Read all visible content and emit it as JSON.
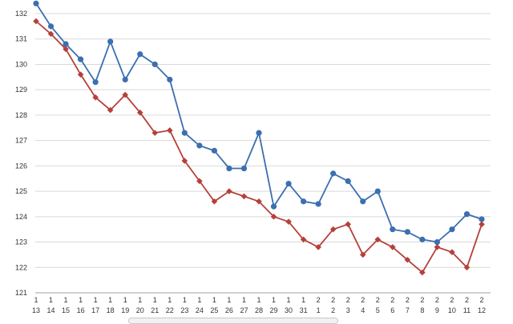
{
  "chart_data": {
    "type": "line",
    "ylim": [
      121,
      132
    ],
    "yticks": [
      121,
      122,
      123,
      124,
      125,
      126,
      127,
      128,
      129,
      130,
      131,
      132
    ],
    "grid": true,
    "legend": "none",
    "x_labels": [
      {
        "top": "1",
        "bottom": "13"
      },
      {
        "top": "1",
        "bottom": "14"
      },
      {
        "top": "1",
        "bottom": "15"
      },
      {
        "top": "1",
        "bottom": "16"
      },
      {
        "top": "1",
        "bottom": "17"
      },
      {
        "top": "1",
        "bottom": "18"
      },
      {
        "top": "1",
        "bottom": "19"
      },
      {
        "top": "1",
        "bottom": "20"
      },
      {
        "top": "1",
        "bottom": "21"
      },
      {
        "top": "1",
        "bottom": "22"
      },
      {
        "top": "1",
        "bottom": "23"
      },
      {
        "top": "1",
        "bottom": "24"
      },
      {
        "top": "1",
        "bottom": "25"
      },
      {
        "top": "1",
        "bottom": "26"
      },
      {
        "top": "1",
        "bottom": "27"
      },
      {
        "top": "1",
        "bottom": "28"
      },
      {
        "top": "1",
        "bottom": "29"
      },
      {
        "top": "1",
        "bottom": "30"
      },
      {
        "top": "1",
        "bottom": "31"
      },
      {
        "top": "2",
        "bottom": "1"
      },
      {
        "top": "2",
        "bottom": "2"
      },
      {
        "top": "2",
        "bottom": "3"
      },
      {
        "top": "2",
        "bottom": "4"
      },
      {
        "top": "2",
        "bottom": "5"
      },
      {
        "top": "2",
        "bottom": "6"
      },
      {
        "top": "2",
        "bottom": "7"
      },
      {
        "top": "2",
        "bottom": "8"
      },
      {
        "top": "2",
        "bottom": "9"
      },
      {
        "top": "2",
        "bottom": "10"
      },
      {
        "top": "2",
        "bottom": "11"
      },
      {
        "top": "2",
        "bottom": "12"
      }
    ],
    "series": [
      {
        "color": "#3b6fb0",
        "marker": "circle",
        "values": [
          132.4,
          131.5,
          130.8,
          130.2,
          129.3,
          130.9,
          129.4,
          130.4,
          130.0,
          129.4,
          127.3,
          126.8,
          126.6,
          125.9,
          125.9,
          127.3,
          124.4,
          125.3,
          124.6,
          124.5,
          125.7,
          125.4,
          124.6,
          125.0,
          123.5,
          123.4,
          123.1,
          123.0,
          123.5,
          124.1,
          123.9
        ]
      },
      {
        "color": "#b5403a",
        "marker": "diamond",
        "values": [
          131.7,
          131.2,
          130.6,
          129.6,
          128.7,
          128.2,
          128.8,
          128.1,
          127.3,
          127.4,
          126.2,
          125.4,
          124.6,
          125.0,
          124.8,
          124.6,
          124.0,
          123.8,
          123.1,
          122.8,
          123.5,
          123.7,
          122.5,
          123.1,
          122.8,
          122.3,
          121.8,
          122.8,
          122.6,
          122.0,
          123.7
        ]
      }
    ]
  }
}
